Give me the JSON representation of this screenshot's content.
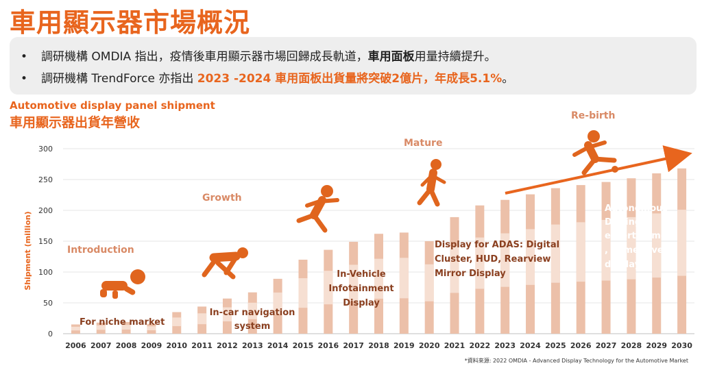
{
  "header": {
    "title": "車用顯示器市場概況"
  },
  "bullets": [
    {
      "marker": "•",
      "text_a": "調研機構 OMDIA 指出，疫情後車用顯示器市場回歸成長軌道，",
      "bold": "車用面板",
      "text_b": "用量持續提升。"
    },
    {
      "marker": "•",
      "text_a": "調研機構 TrendForce 亦指出 ",
      "highlight": "2023 -2024 車用面板出貨量將突破2億片，年成長5.1%",
      "text_b": "。"
    }
  ],
  "chart_header": {
    "en": "Automotive display panel shipment",
    "zh": "車用顯示器出貨年營收"
  },
  "source": "*資料來源: 2022 OMDIA - Advanced Display Technology for the Automotive Market",
  "colors": {
    "accent": "#e8651e",
    "bar": "#ecc0a9",
    "bar_light": "#f6dfd2",
    "arrow": "#e8651e",
    "figure": "#e0651e"
  },
  "chart_data": {
    "type": "bar",
    "title": "Automotive display panel shipment",
    "xlabel": "",
    "ylabel": "Shipment (million)",
    "ylim": [
      0,
      300
    ],
    "yticks": [
      0,
      50,
      100,
      150,
      200,
      250,
      300
    ],
    "categories": [
      "2006",
      "2007",
      "2008",
      "2009",
      "2010",
      "2011",
      "2012",
      "2013",
      "2014",
      "2015",
      "2016",
      "2017",
      "2018",
      "2019",
      "2020",
      "2021",
      "2022",
      "2023",
      "2024",
      "2025",
      "2026",
      "2027",
      "2028",
      "2029",
      "2030"
    ],
    "values": [
      15,
      18,
      19,
      16,
      35,
      44,
      57,
      67,
      89,
      120,
      136,
      149,
      162,
      164,
      150,
      189,
      208,
      217,
      226,
      236,
      241,
      246,
      252,
      260,
      268
    ],
    "stages": [
      "Introduction",
      "Growth",
      "Mature",
      "Re-birth"
    ],
    "annotations": [
      {
        "lines": [
          "For niche market"
        ]
      },
      {
        "lines": [
          "In-car navigation",
          "system"
        ]
      },
      {
        "lines": [
          "In-Vehicle",
          "Infotainment",
          "Display"
        ]
      },
      {
        "lines": [
          "Display for ADAS: Digital",
          "Cluster, HUD, Rearview",
          "Mirror Display"
        ]
      },
      {
        "lines": [
          "Autonomous",
          "Driving:",
          "entertainment",
          ", immersive",
          "display"
        ]
      }
    ]
  }
}
